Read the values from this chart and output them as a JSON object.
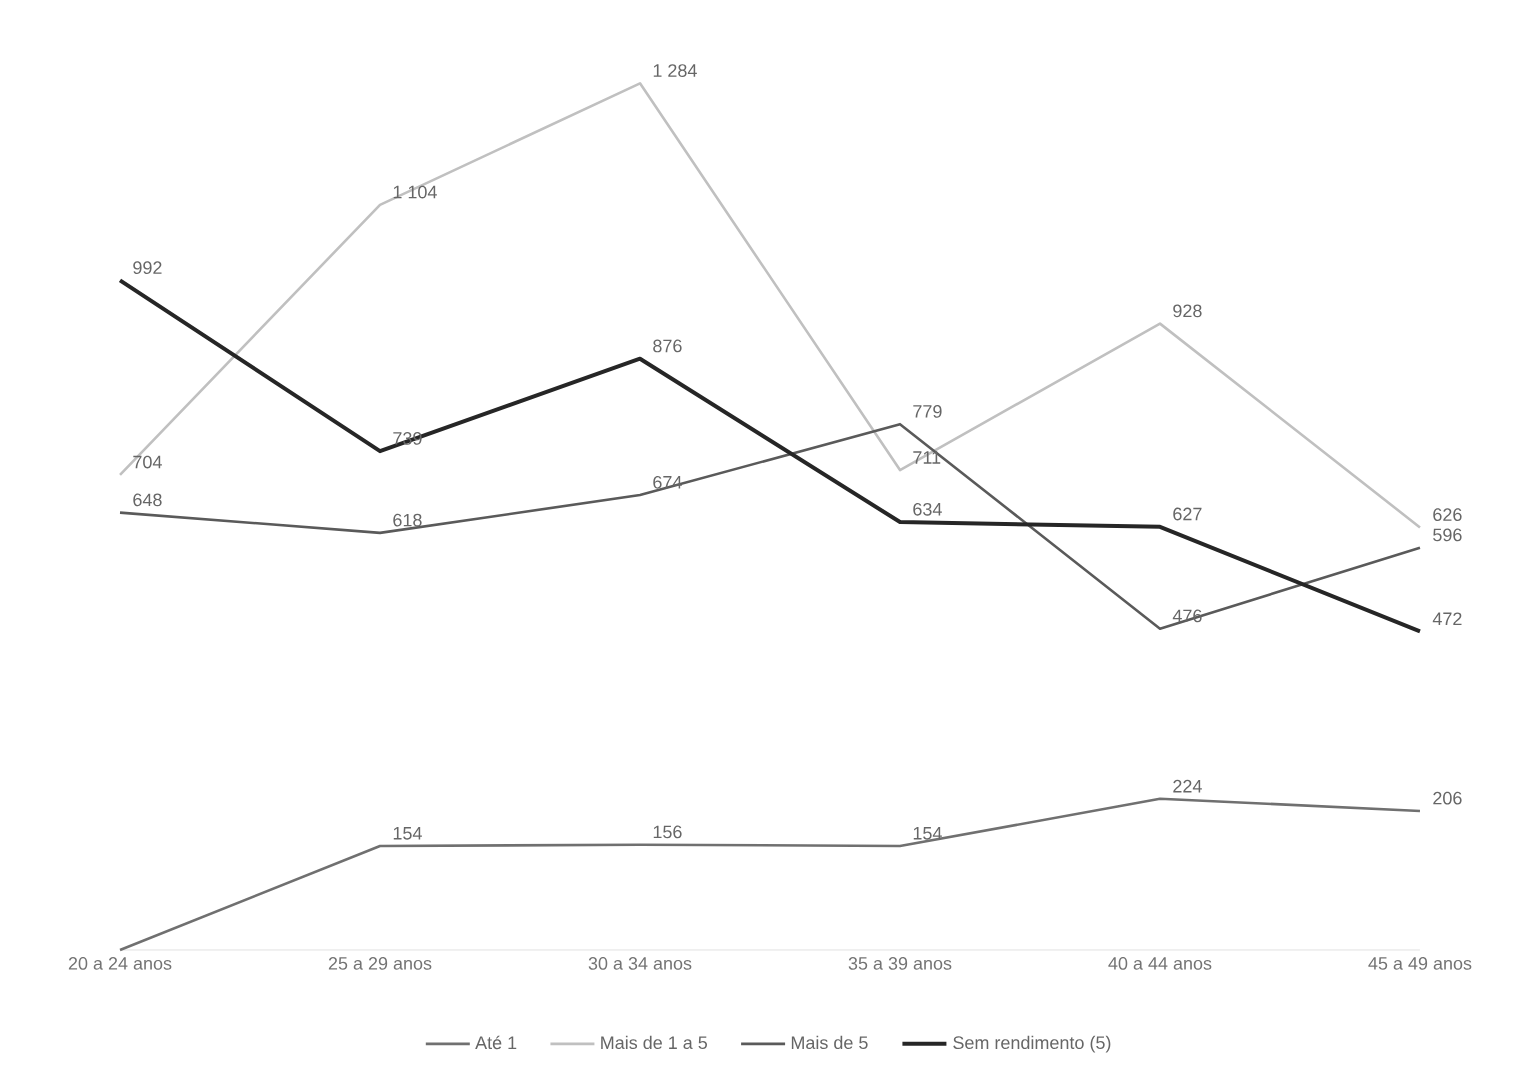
{
  "chart_data": {
    "type": "line",
    "categories": [
      "20 a 24 anos",
      "25 a 29 anos",
      "30 a 34 anos",
      "35 a 39 anos",
      "40 a 44 anos",
      "45 a 49 anos"
    ],
    "series": [
      {
        "name": "Até 1",
        "color": "#707070",
        "values": [
          0,
          154,
          156,
          154,
          224,
          206
        ],
        "value_labels": [
          null,
          "154",
          "156",
          "154",
          "224",
          "206"
        ]
      },
      {
        "name": "Mais de 1 a 5",
        "color": "#c0c0c0",
        "values": [
          704,
          1104,
          1284,
          711,
          928,
          626
        ],
        "value_labels": [
          "704",
          "1 104",
          "1 284",
          "711",
          "928",
          "626"
        ]
      },
      {
        "name": "Mais de 5",
        "color": "#5a5a5a",
        "values": [
          648,
          618,
          674,
          779,
          476,
          596
        ],
        "value_labels": [
          "648",
          "618",
          "674",
          "779",
          "476",
          "596"
        ]
      },
      {
        "name": "Sem rendimento (5)",
        "color": "#262626",
        "values": [
          992,
          739,
          876,
          634,
          627,
          472
        ],
        "value_labels": [
          "992",
          "739",
          "876",
          "634",
          "627",
          "472"
        ]
      }
    ],
    "legend": "bottom",
    "marker": "none",
    "line_style": "solid"
  }
}
